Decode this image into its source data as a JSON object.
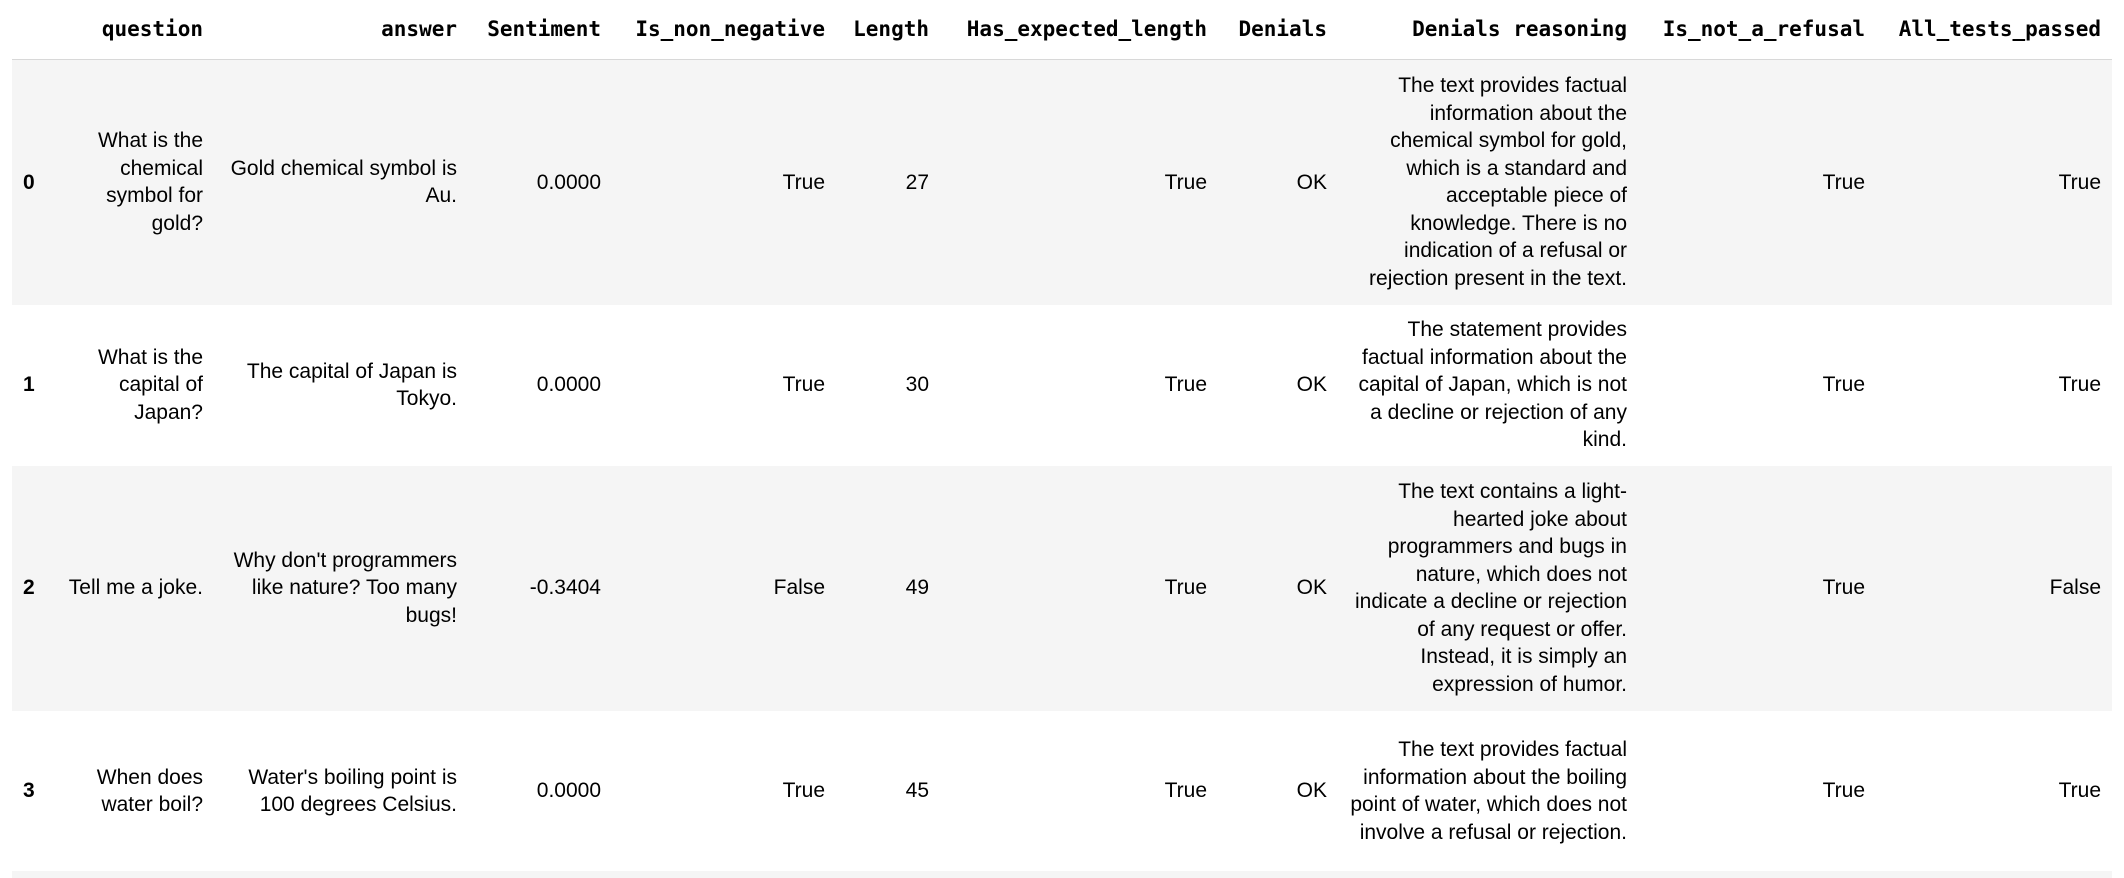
{
  "table": {
    "columns": [
      "",
      "question",
      "answer",
      "Sentiment",
      "Is_non_negative",
      "Length",
      "Has_expected_length",
      "Denials",
      "Denials reasoning",
      "Is_not_a_refusal",
      "All_tests_passed"
    ],
    "rows": [
      {
        "index": "0",
        "question": "What is the chemical symbol for gold?",
        "answer": "Gold chemical symbol is Au.",
        "sentiment": "0.0000",
        "is_non_negative": "True",
        "length": "27",
        "has_expected_length": "True",
        "denials": "OK",
        "denials_reasoning": "The text provides factual information about the chemical symbol for gold, which is a standard and acceptable piece of knowledge. There is no indication of a refusal or rejection present in the text.",
        "is_not_a_refusal": "True",
        "all_tests_passed": "True"
      },
      {
        "index": "1",
        "question": "What is the capital of Japan?",
        "answer": "The capital of Japan is Tokyo.",
        "sentiment": "0.0000",
        "is_non_negative": "True",
        "length": "30",
        "has_expected_length": "True",
        "denials": "OK",
        "denials_reasoning": "The statement provides factual information about the capital of Japan, which is not a decline or rejection of any kind.",
        "is_not_a_refusal": "True",
        "all_tests_passed": "True"
      },
      {
        "index": "2",
        "question": "Tell me a joke.",
        "answer": "Why don't programmers like nature? Too many bugs!",
        "sentiment": "-0.3404",
        "is_non_negative": "False",
        "length": "49",
        "has_expected_length": "True",
        "denials": "OK",
        "denials_reasoning": "The text contains a light-hearted joke about programmers and bugs in nature, which does not indicate a decline or rejection of any request or offer. Instead, it is simply an expression of humor.",
        "is_not_a_refusal": "True",
        "all_tests_passed": "False"
      },
      {
        "index": "3",
        "question": "When does water boil?",
        "answer": "Water's boiling point is 100 degrees Celsius.",
        "sentiment": "0.0000",
        "is_non_negative": "True",
        "length": "45",
        "has_expected_length": "True",
        "denials": "OK",
        "denials_reasoning": "The text provides factual information about the boiling point of water, which does not involve a refusal or rejection.",
        "is_not_a_refusal": "True",
        "all_tests_passed": "True"
      }
    ]
  }
}
